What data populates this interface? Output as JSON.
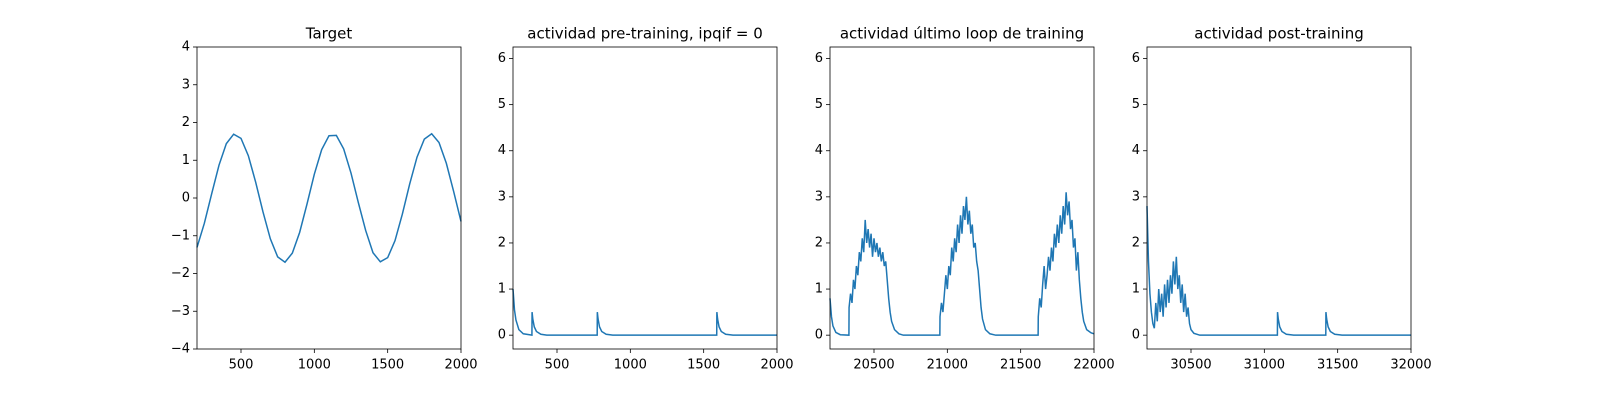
{
  "chart_data": [
    {
      "type": "line",
      "title": "Target",
      "x": [
        200,
        250,
        300,
        350,
        400,
        450,
        500,
        550,
        600,
        650,
        700,
        750,
        800,
        850,
        900,
        950,
        1000,
        1050,
        1100,
        1150,
        1200,
        1250,
        1300,
        1350,
        1400,
        1450,
        1500,
        1550,
        1600,
        1650,
        1700,
        1750,
        1800,
        1850,
        1900,
        1950,
        2000
      ],
      "values": [
        -1.31,
        -0.67,
        0.11,
        0.87,
        1.44,
        1.69,
        1.58,
        1.12,
        0.42,
        -0.37,
        -1.08,
        -1.56,
        -1.7,
        -1.46,
        -0.91,
        -0.16,
        0.63,
        1.28,
        1.65,
        1.66,
        1.3,
        0.66,
        -0.12,
        -0.86,
        -1.45,
        -1.69,
        -1.58,
        -1.13,
        -0.43,
        0.37,
        1.08,
        1.56,
        1.7,
        1.47,
        0.92,
        0.17,
        -0.62
      ],
      "color": "#1f77b4",
      "xlim": [
        200,
        2000
      ],
      "xticks": [
        500,
        1000,
        1500,
        2000
      ],
      "ylim": [
        -4,
        4
      ],
      "yticks": [
        {
          "value": -4,
          "label": "−4"
        },
        {
          "value": -3,
          "label": "−3"
        },
        {
          "value": -2,
          "label": "−2"
        },
        {
          "value": -1,
          "label": "−1"
        },
        0,
        1,
        2,
        3,
        4
      ]
    },
    {
      "type": "line",
      "title": "actividad pre-training, ipqif = 0",
      "x": [
        200,
        210,
        220,
        240,
        270,
        329,
        330,
        335,
        345,
        360,
        390,
        430,
        774,
        775,
        780,
        790,
        805,
        835,
        880,
        1589,
        1590,
        1595,
        1605,
        1620,
        1650,
        1700,
        2000
      ],
      "values": [
        1.0,
        0.55,
        0.33,
        0.12,
        0.03,
        0,
        0.5,
        0.35,
        0.18,
        0.08,
        0.02,
        0,
        0,
        0.5,
        0.35,
        0.18,
        0.08,
        0.02,
        0,
        0,
        0.5,
        0.35,
        0.18,
        0.08,
        0.02,
        0,
        0
      ],
      "color": "#1f77b4",
      "xlim": [
        200,
        2000
      ],
      "xticks": [
        500,
        1000,
        1500,
        2000
      ],
      "ylim": [
        -0.3,
        6.25
      ],
      "yticks": [
        0,
        1,
        2,
        3,
        4,
        5,
        6
      ]
    },
    {
      "type": "line",
      "title": "actividad último loop de training",
      "x": [
        20200,
        20210,
        20220,
        20240,
        20270,
        20329,
        20330,
        20340,
        20350,
        20360,
        20370,
        20380,
        20390,
        20400,
        20410,
        20420,
        20430,
        20440,
        20450,
        20460,
        20470,
        20480,
        20490,
        20500,
        20510,
        20520,
        20530,
        20540,
        20550,
        20560,
        20570,
        20580,
        20590,
        20600,
        20610,
        20620,
        20640,
        20670,
        20700,
        20949,
        20950,
        20960,
        20970,
        20980,
        20990,
        21000,
        21010,
        21020,
        21030,
        21040,
        21050,
        21060,
        21070,
        21080,
        21090,
        21100,
        21110,
        21120,
        21130,
        21140,
        21150,
        21160,
        21170,
        21180,
        21190,
        21200,
        21210,
        21220,
        21230,
        21240,
        21260,
        21290,
        21330,
        21619,
        21620,
        21630,
        21640,
        21650,
        21660,
        21670,
        21680,
        21690,
        21700,
        21710,
        21720,
        21730,
        21740,
        21750,
        21760,
        21770,
        21780,
        21790,
        21800,
        21810,
        21820,
        21830,
        21840,
        21850,
        21860,
        21870,
        21880,
        21890,
        21900,
        21910,
        21920,
        21930,
        21950,
        21980,
        22000
      ],
      "values": [
        0.8,
        0.4,
        0.2,
        0.06,
        0.01,
        0,
        0.6,
        0.9,
        0.7,
        1.2,
        1.0,
        1.5,
        1.3,
        1.8,
        1.6,
        2.1,
        1.8,
        2.5,
        2.0,
        2.3,
        1.9,
        2.2,
        1.7,
        2.1,
        1.8,
        2.0,
        1.7,
        1.9,
        1.6,
        1.8,
        1.5,
        1.6,
        1.2,
        0.8,
        0.5,
        0.3,
        0.12,
        0.03,
        0,
        0,
        0.4,
        0.7,
        0.5,
        0.9,
        1.3,
        1.0,
        1.5,
        1.3,
        1.9,
        1.6,
        2.1,
        1.8,
        2.4,
        2.0,
        2.6,
        2.2,
        2.8,
        2.5,
        3.0,
        2.4,
        2.7,
        2.2,
        2.4,
        1.9,
        2.0,
        1.6,
        1.4,
        1.0,
        0.6,
        0.35,
        0.12,
        0.03,
        0,
        0,
        0.4,
        0.8,
        0.6,
        1.1,
        1.5,
        1.0,
        1.3,
        1.7,
        1.4,
        1.9,
        1.6,
        2.2,
        1.9,
        2.4,
        2.0,
        2.6,
        2.2,
        2.8,
        2.4,
        3.1,
        2.6,
        2.9,
        2.3,
        2.5,
        1.9,
        2.1,
        1.4,
        1.8,
        1.2,
        0.8,
        0.5,
        0.3,
        0.12,
        0.05,
        0.03
      ],
      "color": "#1f77b4",
      "xlim": [
        20200,
        22000
      ],
      "xticks": [
        20500,
        21000,
        21500,
        22000
      ],
      "ylim": [
        -0.3,
        6.25
      ],
      "yticks": [
        0,
        1,
        2,
        3,
        4,
        5,
        6
      ]
    },
    {
      "type": "line",
      "title": "actividad post-training",
      "x": [
        30200,
        30210,
        30220,
        30230,
        30240,
        30250,
        30260,
        30270,
        30280,
        30290,
        30300,
        30310,
        30320,
        30330,
        30340,
        30350,
        30360,
        30370,
        30380,
        30390,
        30400,
        30410,
        30420,
        30430,
        30440,
        30450,
        30460,
        30470,
        30480,
        30490,
        30500,
        30520,
        30560,
        31089,
        31090,
        31095,
        31105,
        31120,
        31150,
        31200,
        31419,
        31420,
        31425,
        31435,
        31450,
        31480,
        31530,
        32000
      ],
      "values": [
        2.8,
        1.6,
        0.9,
        0.5,
        0.25,
        0.15,
        0.7,
        0.3,
        1.0,
        0.5,
        0.9,
        0.4,
        1.1,
        0.6,
        1.2,
        0.7,
        1.3,
        0.9,
        1.6,
        1.1,
        1.7,
        1.0,
        1.3,
        0.7,
        1.1,
        0.5,
        0.9,
        0.4,
        0.6,
        0.25,
        0.12,
        0.04,
        0,
        0,
        0.5,
        0.35,
        0.18,
        0.08,
        0.02,
        0,
        0,
        0.5,
        0.35,
        0.18,
        0.08,
        0.02,
        0,
        0
      ],
      "color": "#1f77b4",
      "xlim": [
        30200,
        32000
      ],
      "xticks": [
        30500,
        31000,
        31500,
        32000
      ],
      "ylim": [
        -0.3,
        6.25
      ],
      "yticks": [
        0,
        1,
        2,
        3,
        4,
        5,
        6
      ]
    }
  ]
}
